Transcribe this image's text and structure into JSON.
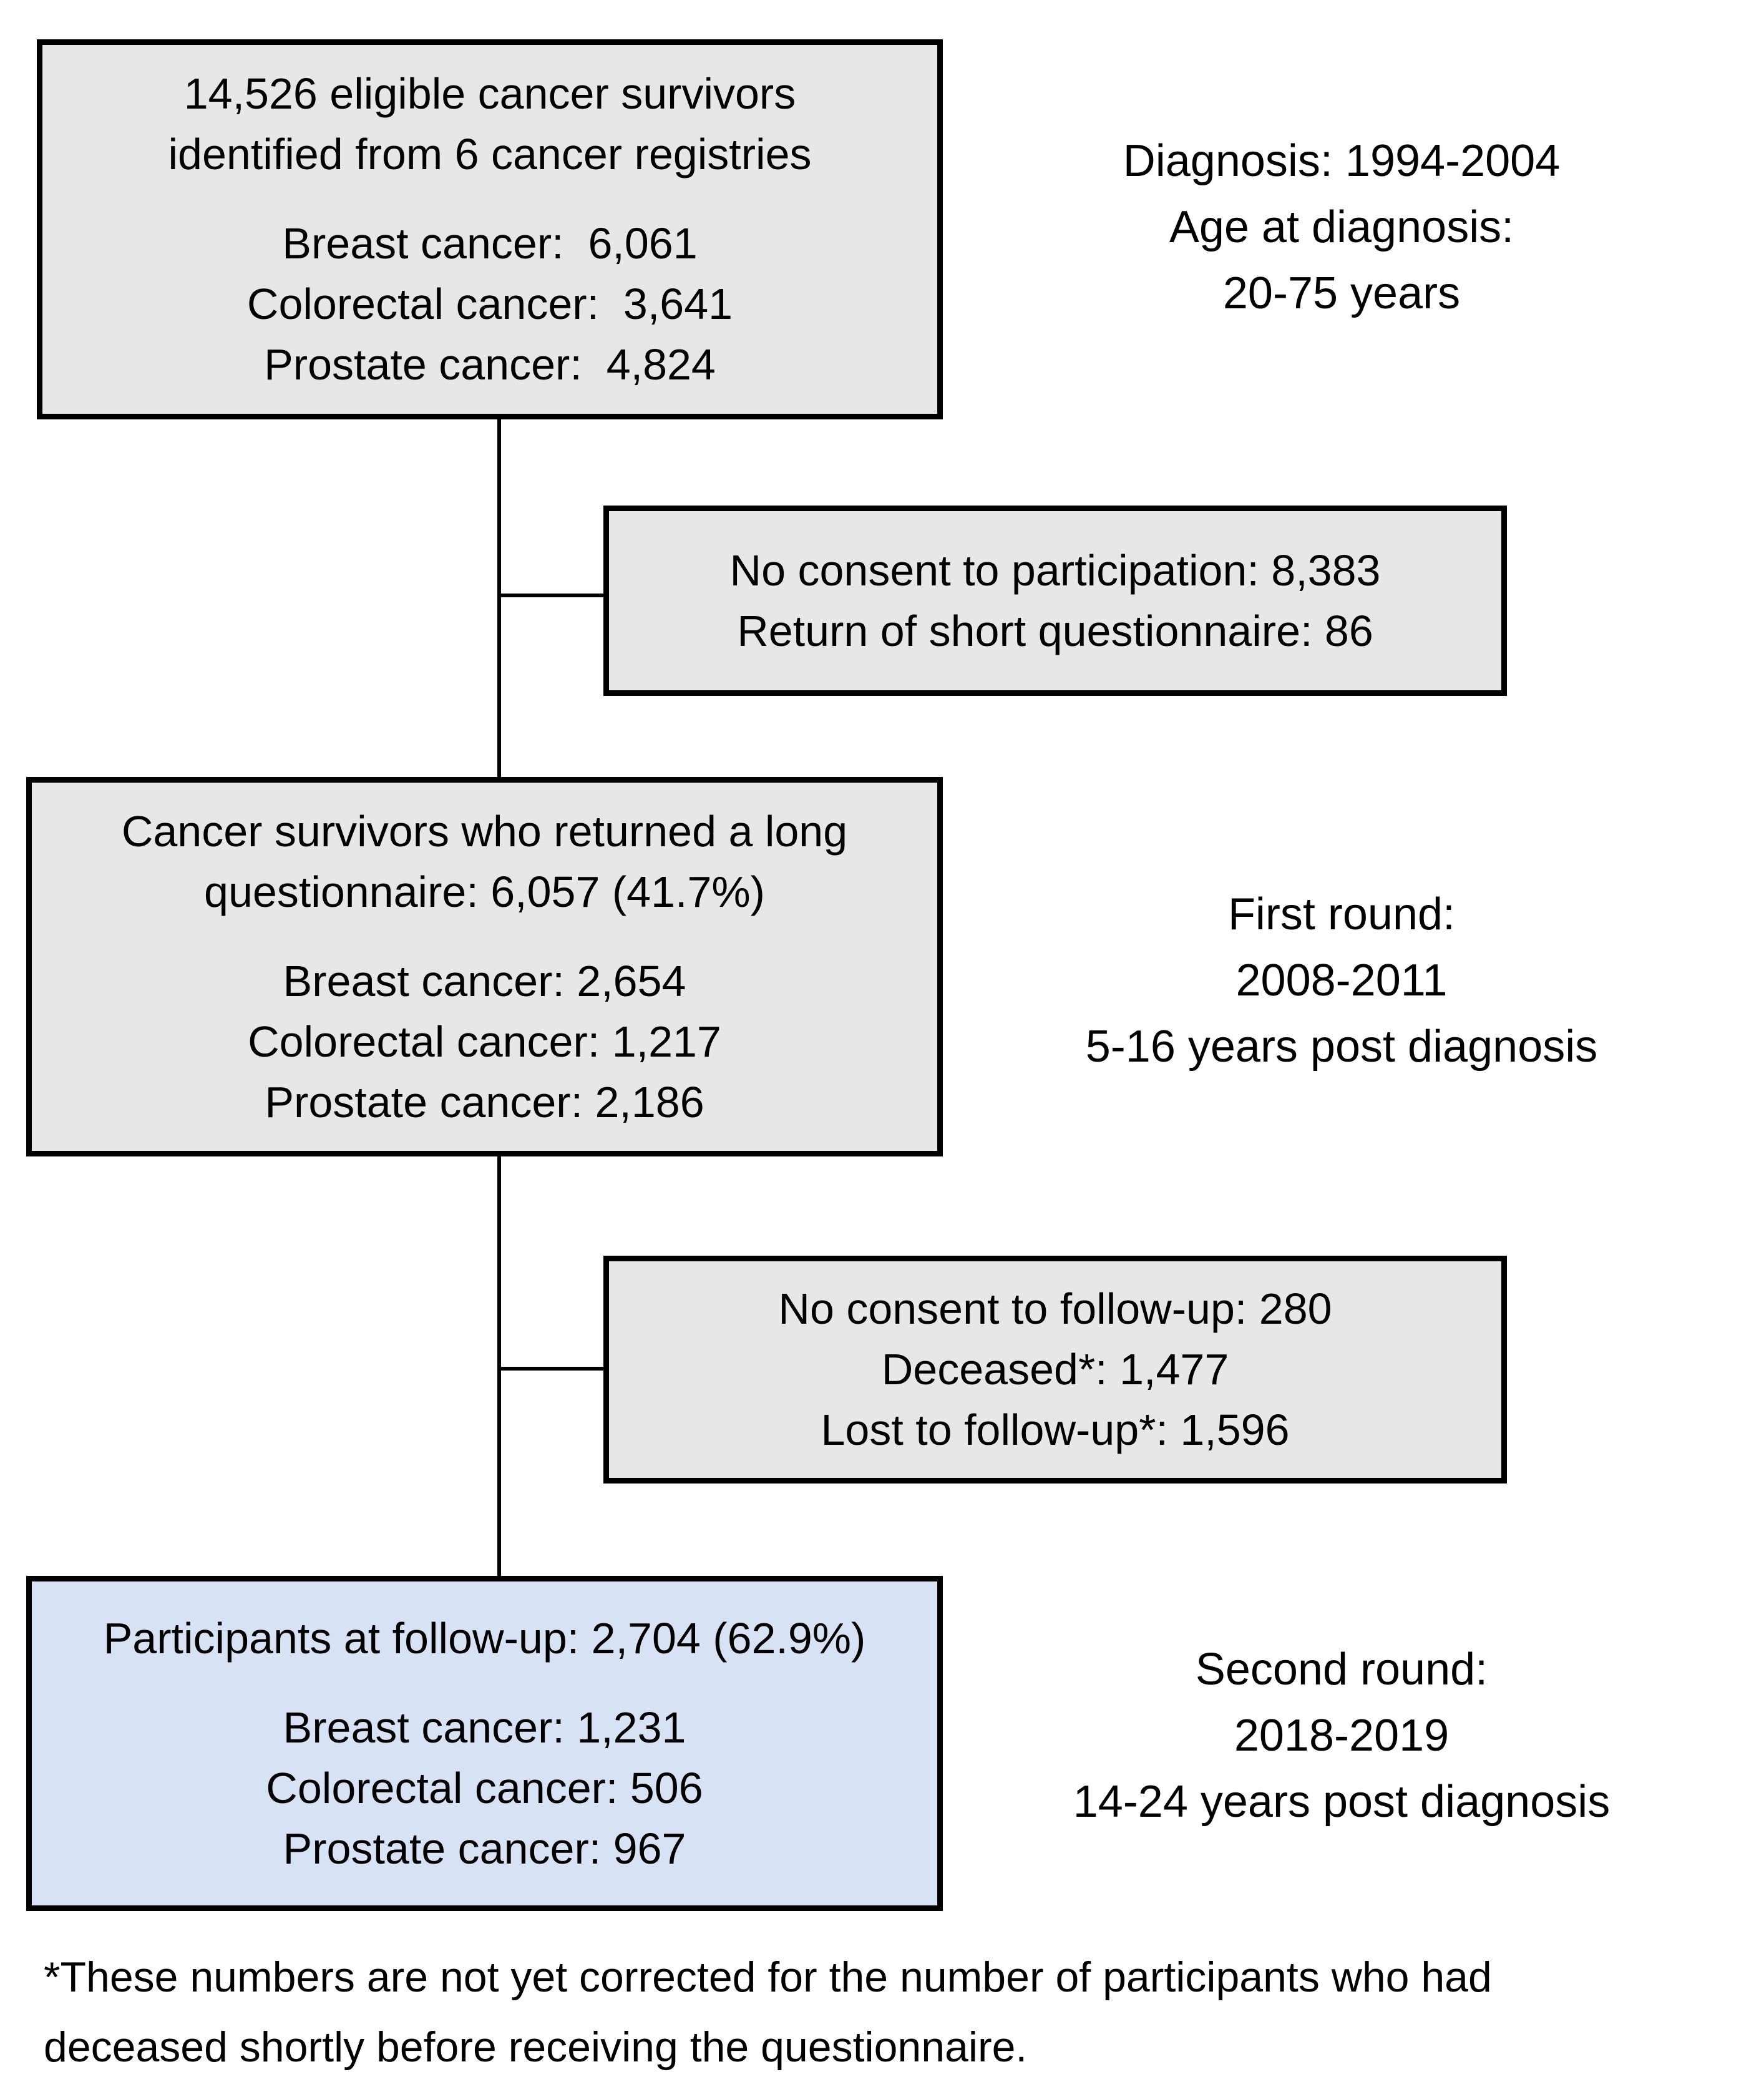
{
  "colors": {
    "background": "#ffffff",
    "box_fill": "#e7e7e7",
    "highlight_box_fill": "#d7e3f4",
    "border": "#000000",
    "text": "#000000"
  },
  "boxes": {
    "eligible": {
      "title_lines": [
        "14,526 eligible cancer survivors",
        "identified from 6 cancer registries"
      ],
      "detail_lines": [
        "Breast cancer:  6,061",
        "Colorectal cancer:  3,641",
        "Prostate cancer:  4,824"
      ]
    },
    "no_consent_participation": {
      "lines": [
        "No consent to participation: 8,383",
        "Return of short questionnaire: 86"
      ]
    },
    "long_questionnaire": {
      "title_lines": [
        "Cancer survivors who returned a long",
        "questionnaire: 6,057 (41.7%)"
      ],
      "detail_lines": [
        "Breast cancer: 2,654",
        "Colorectal cancer: 1,217",
        "Prostate cancer: 2,186"
      ]
    },
    "no_consent_followup": {
      "lines": [
        "No consent to follow-up: 280",
        "Deceased*: 1,477",
        "Lost to follow-up*: 1,596"
      ]
    },
    "participants_followup": {
      "title_lines": [
        "Participants at follow-up: 2,704 (62.9%)"
      ],
      "detail_lines": [
        "Breast cancer: 1,231",
        "Colorectal cancer: 506",
        "Prostate cancer: 967"
      ]
    }
  },
  "annotations": {
    "diagnosis": {
      "lines": [
        "Diagnosis: 1994-2004",
        "Age at diagnosis:",
        "20-75 years"
      ]
    },
    "first_round": {
      "lines": [
        "First round:",
        "2008-2011",
        "5-16 years post diagnosis"
      ]
    },
    "second_round": {
      "lines": [
        "Second round:",
        "2018-2019",
        "14-24 years post diagnosis"
      ]
    }
  },
  "footnote": {
    "text": "*These numbers are not yet corrected for the number of participants who had deceased shortly before receiving the questionnaire."
  }
}
